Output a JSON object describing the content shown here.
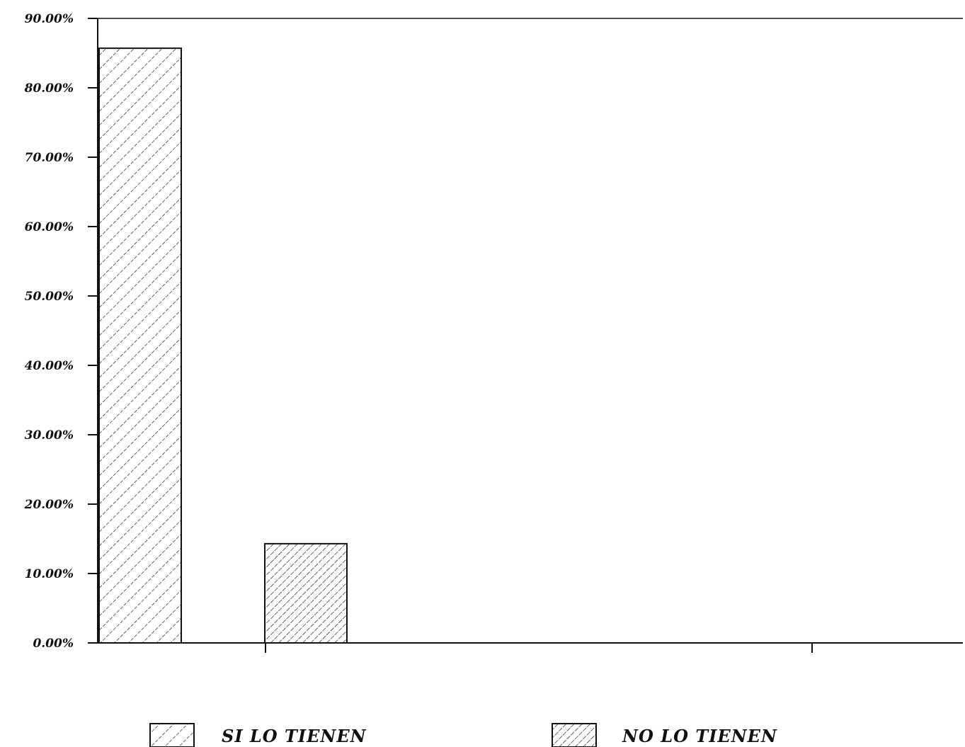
{
  "chart_data": {
    "type": "bar",
    "title": "",
    "xlabel": "",
    "ylabel": "",
    "categories": [
      "SI LO TIENEN",
      "NO LO TIENEN"
    ],
    "values": [
      85.7,
      14.3
    ],
    "ylim": [
      0,
      90
    ],
    "y_ticks": [
      0,
      10,
      20,
      30,
      40,
      50,
      60,
      70,
      80,
      90
    ],
    "y_tick_labels": [
      "0.00%",
      "10.00%",
      "20.00%",
      "30.00%",
      "40.00%",
      "50.00%",
      "60.00%",
      "70.00%",
      "80.00%",
      "90.00%"
    ],
    "grid": false,
    "legend_placement": "bottom",
    "bar_pattern": [
      "diagonal-hatch-sparse",
      "diagonal-hatch-dense"
    ],
    "colors": {
      "ink": "#111111",
      "background": "#ffffff"
    }
  },
  "legend": {
    "items": [
      {
        "label": "SI LO TIENEN"
      },
      {
        "label": "NO LO TIENEN"
      }
    ]
  }
}
